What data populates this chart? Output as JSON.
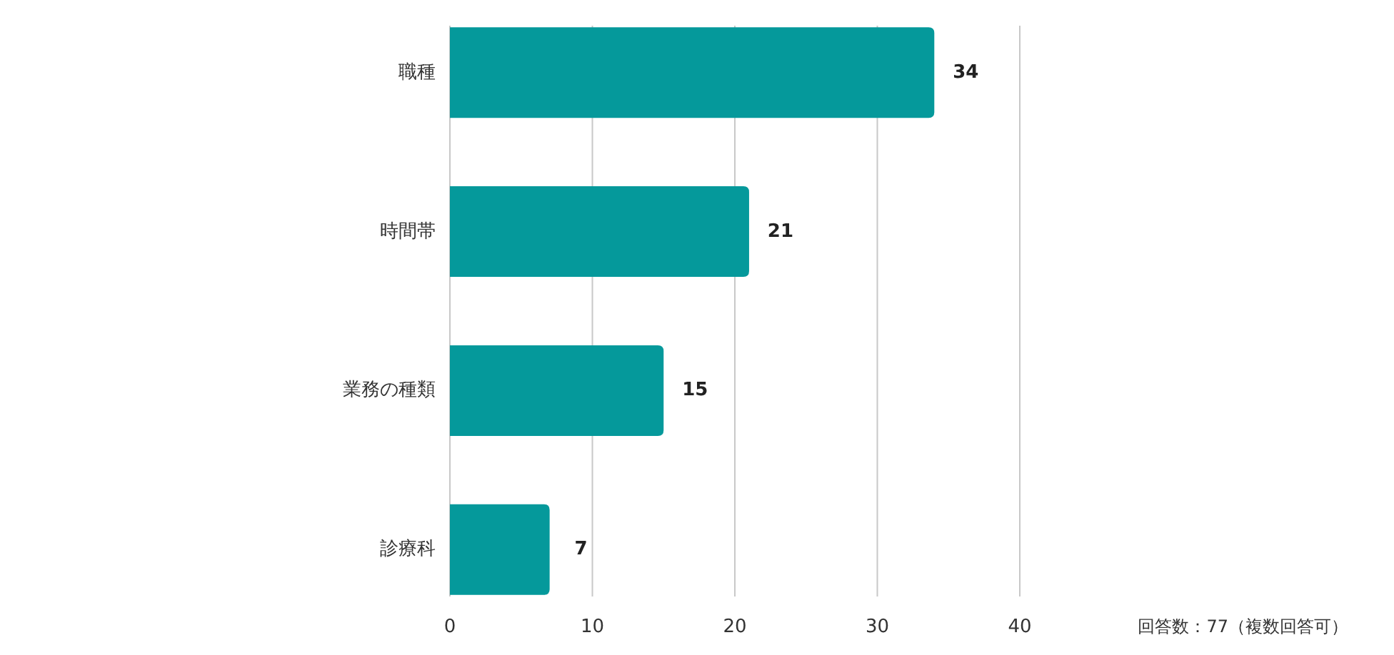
{
  "chart_data": {
    "type": "bar",
    "orientation": "horizontal",
    "categories": [
      "職種",
      "時間帯",
      "業務の種類",
      "診療科"
    ],
    "values": [
      34,
      21,
      15,
      7
    ],
    "color": "#05999b",
    "xlim": [
      0,
      40
    ],
    "xticks": [
      0,
      10,
      20,
      30,
      40
    ],
    "grid": "x",
    "data_labels": true,
    "annotations": [
      "回答数：77（複数回答可）"
    ]
  }
}
